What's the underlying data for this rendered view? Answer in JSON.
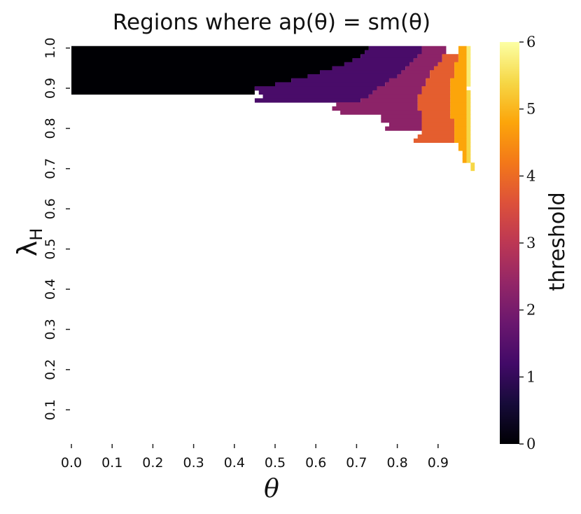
{
  "chart_data": {
    "type": "heatmap",
    "title": "Regions where ap(θ) = sm(θ)",
    "xlabel": "θ",
    "ylabel": "λ",
    "ylabel_subscript": "H",
    "x_ticks": [
      "0.0",
      "0.1",
      "0.2",
      "0.3",
      "0.4",
      "0.5",
      "0.6",
      "0.7",
      "0.8",
      "0.9"
    ],
    "y_ticks": [
      "0.1",
      "0.2",
      "0.3",
      "0.4",
      "0.5",
      "0.6",
      "0.7",
      "0.8",
      "0.9",
      "1.0"
    ],
    "colorbar": {
      "label": "threshold",
      "range": [
        0,
        6
      ],
      "ticks": [
        "0",
        "1",
        "2",
        "3",
        "4",
        "5",
        "6"
      ],
      "colormap": "inferno"
    },
    "regions": [
      {
        "threshold": 0,
        "lambda_rows": [
          [
            1.0,
            0.0,
            0.73
          ],
          [
            0.99,
            0.0,
            0.72
          ],
          [
            0.98,
            0.0,
            0.71
          ],
          [
            0.97,
            0.0,
            0.69
          ],
          [
            0.96,
            0.0,
            0.67
          ],
          [
            0.95,
            0.0,
            0.64
          ],
          [
            0.94,
            0.0,
            0.61
          ],
          [
            0.93,
            0.0,
            0.58
          ],
          [
            0.92,
            0.0,
            0.54
          ],
          [
            0.91,
            0.0,
            0.5
          ],
          [
            0.9,
            0.0,
            0.45
          ],
          [
            0.89,
            0.0,
            0.45
          ]
        ]
      },
      {
        "threshold": 1.3,
        "lambda_rows": [
          [
            1.0,
            0.73,
            0.86
          ],
          [
            0.99,
            0.72,
            0.86
          ],
          [
            0.98,
            0.71,
            0.85
          ],
          [
            0.97,
            0.69,
            0.84
          ],
          [
            0.96,
            0.67,
            0.83
          ],
          [
            0.95,
            0.64,
            0.82
          ],
          [
            0.94,
            0.61,
            0.81
          ],
          [
            0.93,
            0.58,
            0.8
          ],
          [
            0.92,
            0.54,
            0.78
          ],
          [
            0.91,
            0.5,
            0.77
          ],
          [
            0.9,
            0.45,
            0.75
          ],
          [
            0.89,
            0.46,
            0.74
          ],
          [
            0.88,
            0.47,
            0.73
          ],
          [
            0.87,
            0.45,
            0.71
          ]
        ]
      },
      {
        "threshold": 2.3,
        "lambda_rows": [
          [
            1.0,
            0.86,
            0.92
          ],
          [
            0.99,
            0.86,
            0.92
          ],
          [
            0.98,
            0.85,
            0.91
          ],
          [
            0.97,
            0.84,
            0.91
          ],
          [
            0.96,
            0.83,
            0.9
          ],
          [
            0.95,
            0.82,
            0.89
          ],
          [
            0.94,
            0.81,
            0.88
          ],
          [
            0.93,
            0.8,
            0.88
          ],
          [
            0.92,
            0.78,
            0.87
          ],
          [
            0.91,
            0.77,
            0.87
          ],
          [
            0.9,
            0.75,
            0.86
          ],
          [
            0.89,
            0.74,
            0.86
          ],
          [
            0.88,
            0.73,
            0.85
          ],
          [
            0.87,
            0.71,
            0.85
          ],
          [
            0.86,
            0.65,
            0.85
          ],
          [
            0.85,
            0.64,
            0.85
          ],
          [
            0.84,
            0.66,
            0.86
          ],
          [
            0.83,
            0.76,
            0.86
          ],
          [
            0.82,
            0.76,
            0.86
          ],
          [
            0.81,
            0.78,
            0.86
          ],
          [
            0.8,
            0.77,
            0.86
          ]
        ]
      },
      {
        "threshold": 3.8,
        "lambda_rows": [
          [
            0.98,
            0.91,
            0.95
          ],
          [
            0.97,
            0.91,
            0.95
          ],
          [
            0.96,
            0.9,
            0.94
          ],
          [
            0.95,
            0.89,
            0.94
          ],
          [
            0.94,
            0.88,
            0.94
          ],
          [
            0.93,
            0.88,
            0.94
          ],
          [
            0.92,
            0.87,
            0.93
          ],
          [
            0.91,
            0.87,
            0.93
          ],
          [
            0.9,
            0.86,
            0.93
          ],
          [
            0.89,
            0.86,
            0.93
          ],
          [
            0.88,
            0.85,
            0.93
          ],
          [
            0.87,
            0.85,
            0.93
          ],
          [
            0.86,
            0.85,
            0.93
          ],
          [
            0.85,
            0.85,
            0.93
          ],
          [
            0.84,
            0.86,
            0.93
          ],
          [
            0.83,
            0.86,
            0.93
          ],
          [
            0.82,
            0.86,
            0.94
          ],
          [
            0.81,
            0.86,
            0.94
          ],
          [
            0.8,
            0.86,
            0.94
          ],
          [
            0.79,
            0.86,
            0.94
          ],
          [
            0.78,
            0.85,
            0.94
          ],
          [
            0.77,
            0.84,
            0.94
          ]
        ]
      },
      {
        "threshold": 4.8,
        "lambda_rows": [
          [
            1.0,
            0.95,
            0.97
          ],
          [
            0.99,
            0.95,
            0.97
          ],
          [
            0.98,
            0.95,
            0.97
          ],
          [
            0.97,
            0.95,
            0.97
          ],
          [
            0.96,
            0.94,
            0.97
          ],
          [
            0.95,
            0.94,
            0.97
          ],
          [
            0.94,
            0.94,
            0.97
          ],
          [
            0.93,
            0.94,
            0.97
          ],
          [
            0.92,
            0.93,
            0.97
          ],
          [
            0.91,
            0.93,
            0.97
          ],
          [
            0.9,
            0.93,
            0.97
          ],
          [
            0.89,
            0.93,
            0.97
          ],
          [
            0.88,
            0.93,
            0.97
          ],
          [
            0.87,
            0.93,
            0.97
          ],
          [
            0.86,
            0.93,
            0.97
          ],
          [
            0.85,
            0.93,
            0.97
          ],
          [
            0.84,
            0.93,
            0.97
          ],
          [
            0.83,
            0.93,
            0.97
          ],
          [
            0.82,
            0.94,
            0.97
          ],
          [
            0.81,
            0.94,
            0.97
          ],
          [
            0.8,
            0.94,
            0.97
          ],
          [
            0.79,
            0.94,
            0.97
          ],
          [
            0.78,
            0.94,
            0.97
          ],
          [
            0.77,
            0.94,
            0.97
          ],
          [
            0.76,
            0.95,
            0.97
          ],
          [
            0.75,
            0.95,
            0.97
          ],
          [
            0.74,
            0.96,
            0.97
          ],
          [
            0.73,
            0.96,
            0.97
          ],
          [
            0.72,
            0.96,
            0.97
          ]
        ]
      },
      {
        "threshold": 5.7,
        "lambda_rows": [
          [
            1.0,
            0.97,
            0.98
          ],
          [
            0.99,
            0.97,
            0.98
          ],
          [
            0.98,
            0.97,
            0.98
          ],
          [
            0.97,
            0.97,
            0.98
          ],
          [
            0.96,
            0.97,
            0.98
          ],
          [
            0.95,
            0.97,
            0.98
          ],
          [
            0.94,
            0.97,
            0.98
          ],
          [
            0.93,
            0.97,
            0.98
          ],
          [
            0.92,
            0.97,
            0.98
          ],
          [
            0.91,
            0.97,
            0.98
          ]
        ]
      },
      {
        "threshold": 5.4,
        "lambda_rows": [
          [
            0.89,
            0.97,
            0.98
          ],
          [
            0.88,
            0.97,
            0.98
          ],
          [
            0.87,
            0.97,
            0.98
          ],
          [
            0.86,
            0.97,
            0.98
          ],
          [
            0.85,
            0.97,
            0.98
          ],
          [
            0.84,
            0.97,
            0.98
          ],
          [
            0.83,
            0.97,
            0.98
          ],
          [
            0.82,
            0.97,
            0.98
          ],
          [
            0.81,
            0.97,
            0.98
          ],
          [
            0.8,
            0.97,
            0.98
          ],
          [
            0.79,
            0.97,
            0.98
          ],
          [
            0.78,
            0.97,
            0.98
          ],
          [
            0.77,
            0.97,
            0.98
          ],
          [
            0.76,
            0.97,
            0.98
          ],
          [
            0.75,
            0.97,
            0.98
          ],
          [
            0.74,
            0.97,
            0.98
          ],
          [
            0.73,
            0.97,
            0.98
          ],
          [
            0.72,
            0.97,
            0.98
          ],
          [
            0.71,
            0.98,
            0.99
          ],
          [
            0.7,
            0.98,
            0.99
          ]
        ]
      }
    ]
  }
}
